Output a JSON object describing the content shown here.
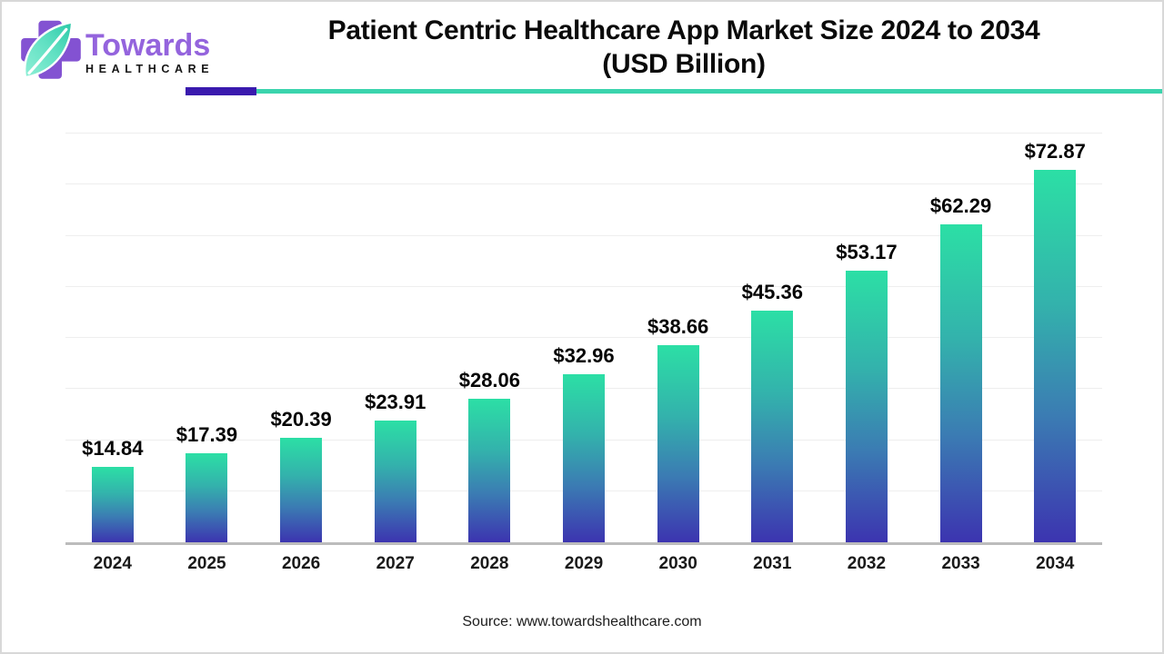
{
  "logo": {
    "brand": "Towards",
    "sub": "HEALTHCARE"
  },
  "title": {
    "line1": "Patient Centric Healthcare App Market Size 2024 to 2034",
    "line2": "(USD Billion)"
  },
  "source": "Source: www.towardshealthcare.com",
  "colors": {
    "bar_top": "#2CDFA5",
    "bar_mid1": "#33B2AC",
    "bar_mid2": "#3B7CB3",
    "bar_bottom": "#3C34B0",
    "separator_purple": "#3A1AAE",
    "separator_teal": "#3BD4AD",
    "logo_purple": "#8352D2",
    "logo_text_purple": "#9464DD",
    "leaf_light": "#8FEFD6",
    "leaf_dark": "#2BC9A8",
    "axis_gray": "#bcbcbc",
    "grid_gray": "#eeeeee"
  },
  "chart_data": {
    "type": "bar",
    "title": "Patient Centric Healthcare App Market Size 2024 to 2034 (USD Billion)",
    "categories": [
      "2024",
      "2025",
      "2026",
      "2027",
      "2028",
      "2029",
      "2030",
      "2031",
      "2032",
      "2033",
      "2034"
    ],
    "values": [
      14.84,
      17.39,
      20.39,
      23.91,
      28.06,
      32.96,
      38.66,
      45.36,
      53.17,
      62.29,
      72.87
    ],
    "value_prefix": "$",
    "value_decimals": 2,
    "xlabel": "",
    "ylabel": "",
    "ylim": [
      0,
      80
    ],
    "grid_step": 10,
    "grid": true,
    "legend": false,
    "bar_gradient": [
      "#2CDFA5",
      "#3C34B0"
    ]
  }
}
